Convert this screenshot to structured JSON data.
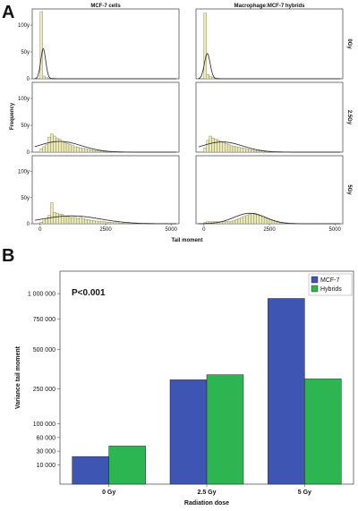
{
  "panel_a": {
    "letter": "A"
  },
  "panel_b": {
    "letter": "B",
    "p_value": "P<0.001"
  },
  "colors": {
    "hist_fill": "#ecebb6",
    "hist_stroke": "#7a775a",
    "mcf7": "#3f55b3",
    "hybrids": "#2db551",
    "curve": "#222222",
    "frame": "#555555"
  },
  "chart_data": [
    {
      "type": "bar",
      "subtype": "histogram-grid",
      "column_labels": [
        "MCF-7 cells",
        "Macrophage:MCF-7 hybrids"
      ],
      "row_labels": [
        "0Gy",
        "2.5Gy",
        "5Gy"
      ],
      "ylabel": "Frequency",
      "xlabel": "Tail moment",
      "xlim": [
        -300,
        5300
      ],
      "xticks": [
        0,
        2500,
        5000
      ],
      "ylim": [
        0,
        130
      ],
      "yticks": [
        0,
        50,
        100
      ],
      "yticklabels": [
        "0",
        "50y",
        "100y"
      ],
      "bin_start": -100,
      "bin_width": 100,
      "panels": [
        [
          {
            "counts": [
              0,
              125,
              5,
              2,
              1,
              1,
              1
            ],
            "curve": {
              "mean": 120,
              "sd": 95,
              "peak": 56
            }
          },
          {
            "counts": [
              0,
              122,
              8,
              4,
              2,
              1,
              1
            ],
            "curve": {
              "mean": 130,
              "sd": 110,
              "peak": 47
            }
          }
        ],
        [
          {
            "counts": [
              0,
              6,
              10,
              14,
              28,
              34,
              30,
              26,
              24,
              20,
              18,
              16,
              14,
              12,
              10,
              9,
              8,
              7,
              6,
              5,
              4,
              3,
              3,
              2,
              2,
              1,
              1,
              1,
              1,
              1
            ],
            "curve": {
              "mean": 750,
              "sd": 820,
              "peak": 20
            }
          },
          {
            "counts": [
              0,
              8,
              22,
              30,
              26,
              24,
              22,
              20,
              18,
              16,
              14,
              12,
              11,
              10,
              9,
              8,
              7,
              6,
              5,
              4,
              3,
              3,
              2,
              2,
              1,
              1
            ],
            "curve": {
              "mean": 700,
              "sd": 780,
              "peak": 19
            }
          }
        ],
        [
          {
            "counts": [
              0,
              3,
              6,
              10,
              16,
              40,
              22,
              20,
              18,
              18,
              14,
              14,
              12,
              12,
              12,
              10,
              12,
              10,
              8,
              8,
              6,
              6,
              5,
              5,
              4,
              4,
              3,
              3,
              2,
              2,
              2,
              1,
              1,
              1,
              1,
              1
            ],
            "curve": {
              "mean": 1200,
              "sd": 1100,
              "peak": 15
            }
          },
          {
            "counts": [
              0,
              2,
              4,
              4,
              4,
              4,
              4,
              4,
              4,
              4,
              4,
              4,
              6,
              8,
              10,
              12,
              14,
              16,
              18,
              20,
              20,
              18,
              16,
              14,
              12,
              10,
              8,
              6,
              4,
              2,
              1
            ],
            "curve": {
              "mean": 1750,
              "sd": 600,
              "peak": 20
            }
          }
        ]
      ]
    },
    {
      "type": "bar",
      "categories": [
        "0 Gy",
        "2.5 Gy",
        "5 Gy"
      ],
      "series": [
        {
          "name": "MCF-7",
          "values": [
            21000,
            300000,
            950000
          ]
        },
        {
          "name": "Hybrids",
          "values": [
            40000,
            330000,
            305000
          ]
        }
      ],
      "xlabel": "Radiation dose",
      "ylabel": "Variance tail moment",
      "y_scale": "sqrt",
      "ylim": [
        0,
        1250000
      ],
      "yticks": [
        10000,
        30000,
        60000,
        100000,
        250000,
        500000,
        750000,
        1000000
      ],
      "yticklabels": [
        "10 000",
        "30 000",
        "60 000",
        "100 000",
        "250 000",
        "500 000",
        "750 000",
        "1 000 000"
      ],
      "legend_position": "top-right"
    }
  ]
}
